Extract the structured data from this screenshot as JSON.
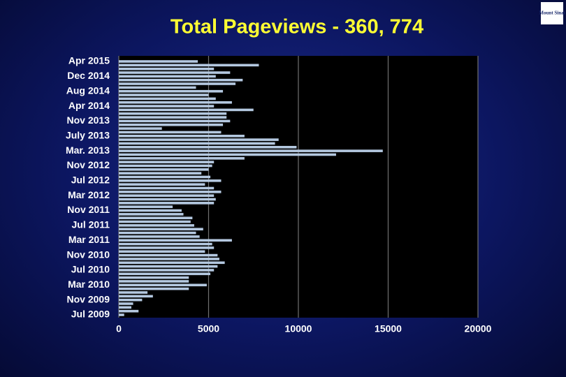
{
  "chart_data": {
    "type": "hbar",
    "title": "Total Pageviews - 360, 774",
    "logo": "Mount Sinai",
    "categories": [
      "Apr 2015",
      null,
      null,
      null,
      "Dec 2014",
      null,
      null,
      null,
      "Aug 2014",
      null,
      null,
      null,
      "Apr 2014",
      null,
      null,
      null,
      "Nov 2013",
      null,
      null,
      null,
      "July 2013",
      null,
      null,
      null,
      "Mar. 2013",
      null,
      null,
      null,
      "Nov 2012",
      null,
      null,
      null,
      "Jul 2012",
      null,
      null,
      null,
      "Mar 2012",
      null,
      null,
      null,
      "Nov 2011",
      null,
      null,
      null,
      "Jul 2011",
      null,
      null,
      null,
      "Mar 2011",
      null,
      null,
      null,
      "Nov 2010",
      null,
      null,
      null,
      "Jul 2010",
      null,
      null,
      null,
      "Mar 2010",
      null,
      null,
      null,
      "Nov 2009",
      null,
      null,
      null,
      "Jul 2009"
    ],
    "values": [
      4400,
      7800,
      5300,
      6200,
      5400,
      6900,
      6500,
      4300,
      5800,
      5000,
      5400,
      6300,
      5300,
      7500,
      6000,
      6000,
      6200,
      5800,
      2400,
      5700,
      7000,
      8900,
      8700,
      9900,
      14700,
      12100,
      7000,
      5300,
      5200,
      5000,
      4600,
      5100,
      5700,
      4800,
      5300,
      5700,
      5300,
      5400,
      5300,
      3000,
      3500,
      3600,
      4100,
      4000,
      4200,
      4700,
      4300,
      4500,
      6300,
      5200,
      5300,
      4800,
      5500,
      5600,
      5900,
      5500,
      5300,
      5100,
      3900,
      3900,
      4900,
      3900,
      1600,
      1900,
      1300,
      800,
      700,
      1100,
      300
    ],
    "color": "#b4c8e0",
    "xlim": [
      0,
      20000
    ],
    "xticks": [
      0,
      5000,
      10000,
      15000,
      20000
    ],
    "grid": true
  }
}
